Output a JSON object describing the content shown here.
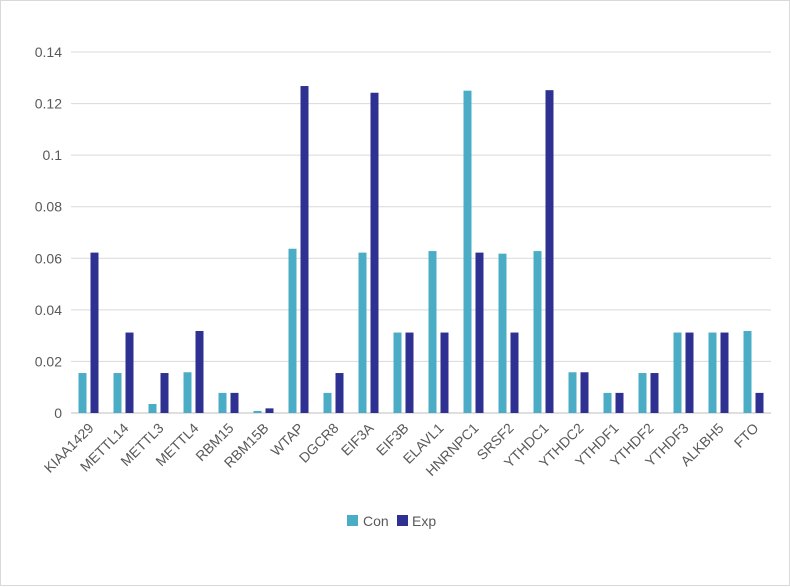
{
  "chart_data": {
    "type": "bar",
    "title": "",
    "xlabel": "",
    "ylabel": "",
    "ylim": [
      0,
      0.14
    ],
    "yticks": [
      "0",
      "0.02",
      "0.04",
      "0.06",
      "0.08",
      "0.1",
      "0.12",
      "0.14"
    ],
    "grid": true,
    "legend_position": "bottom",
    "categories": [
      "KIAA1429",
      "METTL14",
      "METTL3",
      "METTL4",
      "RBM15",
      "RBM15B",
      "WTAP",
      "DGCR8",
      "EIF3A",
      "EIF3B",
      "ELAVL1",
      "HNRNPC1",
      "SRSF2",
      "YTHDC1",
      "YTHDC2",
      "YTHDF1",
      "YTHDF2",
      "YTHDF3",
      "ALKBH5",
      "FTO"
    ],
    "series": [
      {
        "name": "Con",
        "color": "#4bacc6",
        "values": [
          0.0155,
          0.0155,
          0.0035,
          0.0158,
          0.0078,
          0.0008,
          0.0637,
          0.0078,
          0.0622,
          0.0312,
          0.0628,
          0.125,
          0.0618,
          0.0628,
          0.0158,
          0.0078,
          0.0155,
          0.0312,
          0.0312,
          0.0318
        ]
      },
      {
        "name": "Exp",
        "color": "#2e3192",
        "values": [
          0.0622,
          0.0312,
          0.0155,
          0.0318,
          0.0078,
          0.0018,
          0.1268,
          0.0155,
          0.1242,
          0.0312,
          0.0312,
          0.0622,
          0.0312,
          0.1252,
          0.0158,
          0.0078,
          0.0155,
          0.0312,
          0.0312,
          0.0078
        ]
      }
    ]
  }
}
